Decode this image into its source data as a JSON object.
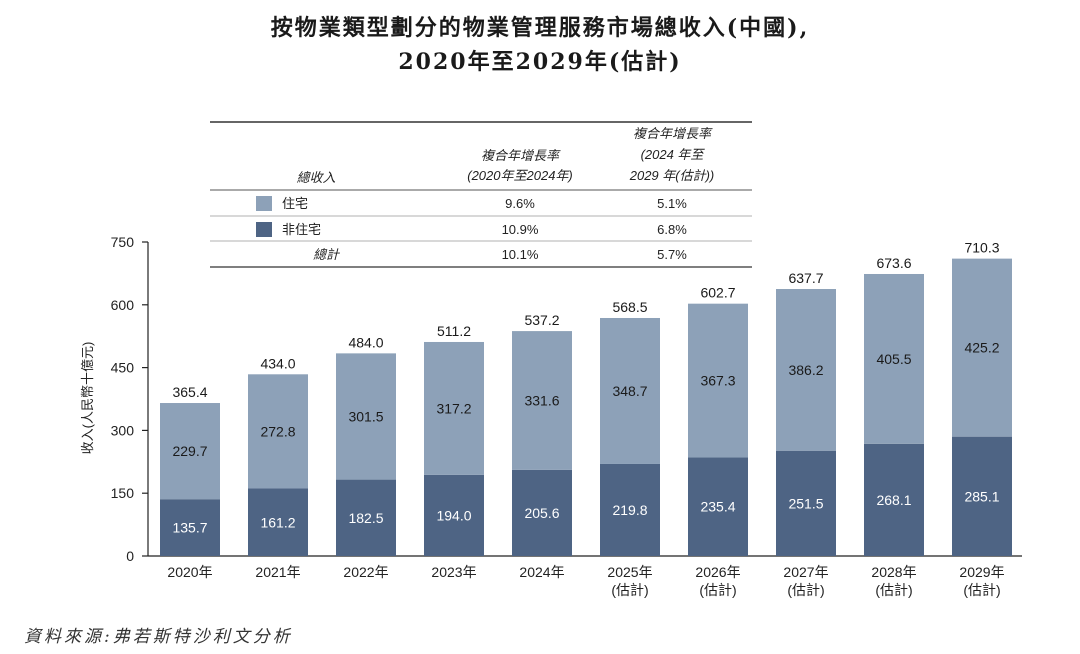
{
  "title_line1": "按物業類型劃分的物業管理服務市場總收入(中國),",
  "title_line2": "2020年至2029年(估計)",
  "source": "資料來源:弗若斯特沙利文分析",
  "colors": {
    "residential": "#8da1b8",
    "non_residential": "#4e6484",
    "axis": "#222222"
  },
  "legend_table": {
    "header_label": "總收入",
    "col1_header": [
      "複合年增長率",
      "(2020年至2024年)"
    ],
    "col2_header": [
      "複合年增長率",
      "(2024 年至",
      "2029 年(估計))"
    ],
    "rows": [
      {
        "label": "住宅",
        "swatch": "residential",
        "c1": "9.6%",
        "c2": "5.1%"
      },
      {
        "label": "非住宅",
        "swatch": "non_residential",
        "c1": "10.9%",
        "c2": "6.8%"
      },
      {
        "label": "總計",
        "swatch": "",
        "c1": "10.1%",
        "c2": "5.7%"
      }
    ]
  },
  "chart_data": {
    "type": "bar",
    "stacked": true,
    "categories": [
      [
        "2020年"
      ],
      [
        "2021年"
      ],
      [
        "2022年"
      ],
      [
        "2023年"
      ],
      [
        "2024年"
      ],
      [
        "2025年",
        "(估計)"
      ],
      [
        "2026年",
        "(估計)"
      ],
      [
        "2027年",
        "(估計)"
      ],
      [
        "2028年",
        "(估計)"
      ],
      [
        "2029年",
        "(估計)"
      ]
    ],
    "series": [
      {
        "name": "非住宅",
        "values": [
          135.7,
          161.2,
          182.5,
          194.0,
          205.6,
          219.8,
          235.4,
          251.5,
          268.1,
          285.1
        ]
      },
      {
        "name": "住宅",
        "values": [
          229.7,
          272.8,
          301.5,
          317.2,
          331.6,
          348.7,
          367.3,
          386.2,
          405.5,
          425.2
        ]
      }
    ],
    "totals": [
      365.4,
      434.0,
      484.0,
      511.2,
      537.2,
      568.5,
      602.7,
      637.7,
      673.6,
      710.3
    ],
    "ylabel": "收入(人民幣十億元)",
    "ylim": [
      0,
      750
    ],
    "yticks": [
      0,
      150,
      300,
      450,
      600,
      750
    ],
    "grid": false
  }
}
